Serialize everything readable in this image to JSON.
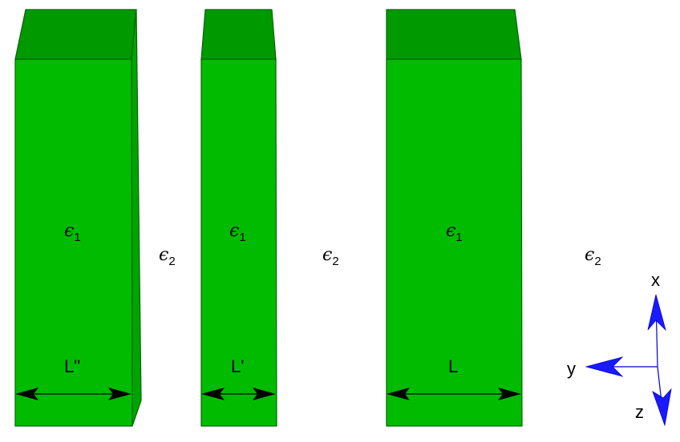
{
  "blocks": [
    {
      "id": "left",
      "epsilon": {
        "symbol": "ϵ",
        "subscript": "1"
      },
      "width_label": "L\""
    },
    {
      "id": "middle",
      "epsilon": {
        "symbol": "ϵ",
        "subscript": "1"
      },
      "width_label": "L'"
    },
    {
      "id": "right",
      "epsilon": {
        "symbol": "ϵ",
        "subscript": "1"
      },
      "width_label": "L"
    }
  ],
  "gaps": [
    {
      "epsilon": {
        "symbol": "ϵ",
        "subscript": "2"
      }
    },
    {
      "epsilon": {
        "symbol": "ϵ",
        "subscript": "2"
      }
    },
    {
      "epsilon": {
        "symbol": "ϵ",
        "subscript": "2"
      }
    }
  ],
  "axes": {
    "x": "x",
    "y": "y",
    "z": "z"
  },
  "colors": {
    "block_front": "#00bb00",
    "block_top": "#009900",
    "block_edge": "#006600",
    "axis_arrow": "#1a1aff",
    "dimension_arrow": "#000000"
  }
}
